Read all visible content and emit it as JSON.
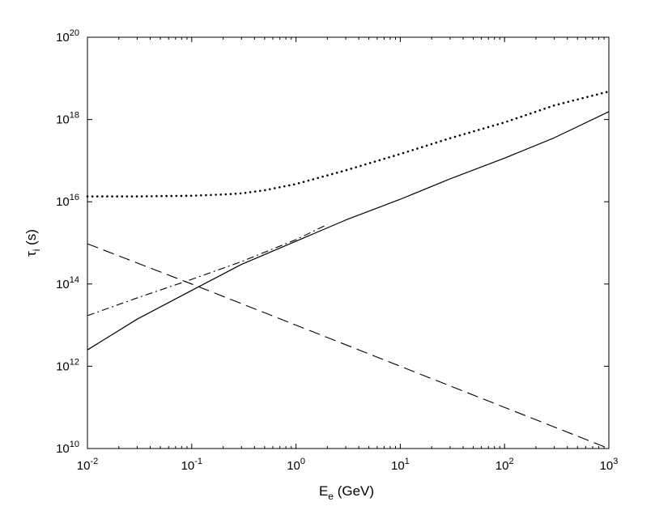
{
  "chart_data": {
    "type": "line",
    "title": "",
    "xlabel": {
      "base": "E",
      "sub": "e",
      "rest": " (GeV)"
    },
    "ylabel": {
      "base": "τ",
      "sub": "i",
      "rest": " (s)"
    },
    "x_scale": "log",
    "y_scale": "log",
    "xlim": [
      0.01,
      1000
    ],
    "ylim": [
      10000000000.0,
      1e+20
    ],
    "grid": false,
    "legend": "none",
    "x_ticks": [
      {
        "base": "10",
        "exp": "-2",
        "value": 0.01
      },
      {
        "base": "10",
        "exp": "-1",
        "value": 0.1
      },
      {
        "base": "10",
        "exp": "0",
        "value": 1
      },
      {
        "base": "10",
        "exp": "1",
        "value": 10
      },
      {
        "base": "10",
        "exp": "2",
        "value": 100
      },
      {
        "base": "10",
        "exp": "3",
        "value": 1000
      }
    ],
    "y_ticks": [
      {
        "base": "10",
        "exp": "10",
        "value": 10000000000.0
      },
      {
        "base": "10",
        "exp": "12",
        "value": 1000000000000.0
      },
      {
        "base": "10",
        "exp": "14",
        "value": 100000000000000.0
      },
      {
        "base": "10",
        "exp": "16",
        "value": 1e+16
      },
      {
        "base": "10",
        "exp": "18",
        "value": 1e+18
      },
      {
        "base": "10",
        "exp": "20",
        "value": 1e+20
      }
    ],
    "series": [
      {
        "style": "solid",
        "x": [
          0.01,
          0.03,
          0.1,
          0.3,
          1,
          3,
          10,
          30,
          100,
          300,
          1000
        ],
        "y": [
          2500000000000.0,
          14000000000000.0,
          70000000000000.0,
          300000000000000.0,
          1100000000000000.0,
          3600000000000000.0,
          1.15e+16,
          3.6e+16,
          1.15e+17,
          3.6e+17,
          1.55e+18
        ]
      },
      {
        "style": "dashdot",
        "x": [
          0.01,
          0.03,
          0.1,
          0.3,
          1,
          2
        ],
        "y": [
          17000000000000.0,
          46000000000000.0,
          130000000000000.0,
          350000000000000.0,
          1200000000000000.0,
          2800000000000000.0
        ]
      },
      {
        "style": "dashed",
        "x": [
          0.01,
          0.1,
          1,
          10,
          100,
          1000
        ],
        "y": [
          950000000000000.0,
          100000000000000.0,
          10000000000000.0,
          1000000000000.0,
          100000000000.0,
          10000000000.0
        ]
      },
      {
        "style": "dotted",
        "x": [
          0.01,
          0.03,
          0.1,
          0.2,
          0.3,
          0.5,
          1,
          3,
          10,
          30,
          100,
          300,
          1000
        ],
        "y": [
          1.35e+16,
          1.35e+16,
          1.4e+16,
          1.5e+16,
          1.6e+16,
          1.9e+16,
          2.7e+16,
          5.8e+16,
          1.45e+17,
          3.5e+17,
          8.5e+17,
          2.2e+18,
          4.8e+18
        ]
      }
    ]
  }
}
